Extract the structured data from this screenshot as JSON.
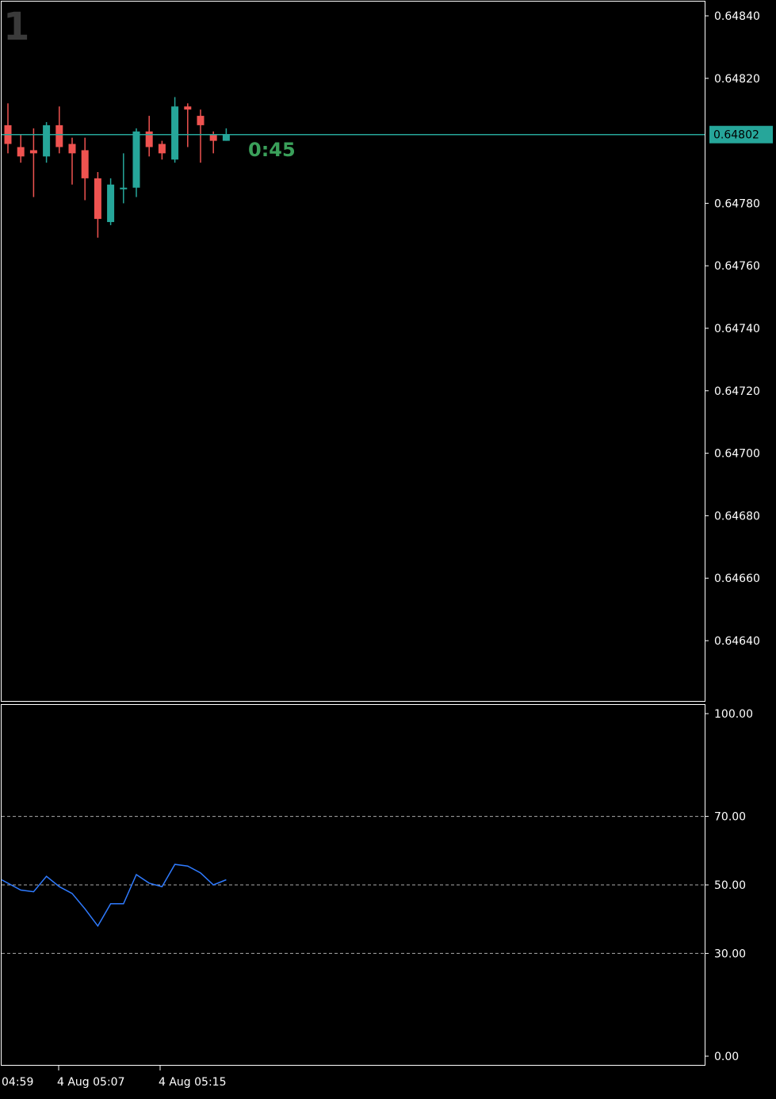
{
  "timeframe_label": "1",
  "countdown": "0:45",
  "current_price_tag": "0.64802",
  "colors": {
    "background": "#000000",
    "frame": "#ffffff",
    "bull": "#26a69a",
    "bear": "#ef5350",
    "rsi_line": "#2f7bff",
    "countdown": "#3aa05a",
    "timeframe_text": "#3a3a3a",
    "level_line": "#aaaaaa"
  },
  "chart_data": [
    {
      "type": "candlestick",
      "y_axis_ticks": [
        "0.64840",
        "0.64820",
        "0.64780",
        "0.64760",
        "0.64740",
        "0.64720",
        "0.64700",
        "0.64680",
        "0.64660",
        "0.64640"
      ],
      "ylim": [
        0.64622,
        0.64845
      ],
      "current_price": 0.64802,
      "candles": [
        {
          "o": 0.64805,
          "h": 0.64812,
          "l": 0.64796,
          "c": 0.64799
        },
        {
          "o": 0.64798,
          "h": 0.64802,
          "l": 0.64793,
          "c": 0.64795
        },
        {
          "o": 0.64797,
          "h": 0.64804,
          "l": 0.64782,
          "c": 0.64796
        },
        {
          "o": 0.64795,
          "h": 0.64806,
          "l": 0.64793,
          "c": 0.64805
        },
        {
          "o": 0.64805,
          "h": 0.64811,
          "l": 0.64796,
          "c": 0.64798
        },
        {
          "o": 0.64799,
          "h": 0.64801,
          "l": 0.64786,
          "c": 0.64796
        },
        {
          "o": 0.64797,
          "h": 0.64801,
          "l": 0.64781,
          "c": 0.64788
        },
        {
          "o": 0.64788,
          "h": 0.6479,
          "l": 0.64769,
          "c": 0.64775
        },
        {
          "o": 0.64774,
          "h": 0.64788,
          "l": 0.64773,
          "c": 0.64786
        },
        {
          "o": 0.64785,
          "h": 0.64796,
          "l": 0.6478,
          "c": 0.64785
        },
        {
          "o": 0.64785,
          "h": 0.64804,
          "l": 0.64782,
          "c": 0.64803
        },
        {
          "o": 0.64803,
          "h": 0.64808,
          "l": 0.64795,
          "c": 0.64798
        },
        {
          "o": 0.64799,
          "h": 0.648,
          "l": 0.64794,
          "c": 0.64796
        },
        {
          "o": 0.64794,
          "h": 0.64814,
          "l": 0.64793,
          "c": 0.64811
        },
        {
          "o": 0.64811,
          "h": 0.64812,
          "l": 0.64798,
          "c": 0.6481
        },
        {
          "o": 0.64808,
          "h": 0.6481,
          "l": 0.64793,
          "c": 0.64805
        },
        {
          "o": 0.64802,
          "h": 0.64803,
          "l": 0.64796,
          "c": 0.648
        },
        {
          "o": 0.648,
          "h": 0.64804,
          "l": 0.648,
          "c": 0.64802
        }
      ]
    },
    {
      "type": "line",
      "indicator": "oscillator",
      "y_axis_ticks": [
        "100.00",
        "70.00",
        "50.00",
        "30.00",
        "0.00"
      ],
      "levels": [
        70,
        50,
        30
      ],
      "ylim": [
        0,
        100
      ],
      "values": [
        51.5,
        48.5,
        48,
        52.5,
        49.5,
        47.5,
        43,
        38,
        44.5,
        44.5,
        53,
        50.5,
        49.5,
        56,
        55.5,
        53.5,
        50,
        51.5
      ]
    }
  ],
  "time_axis": [
    "04:59",
    "4 Aug 05:07",
    "4 Aug 05:15"
  ]
}
